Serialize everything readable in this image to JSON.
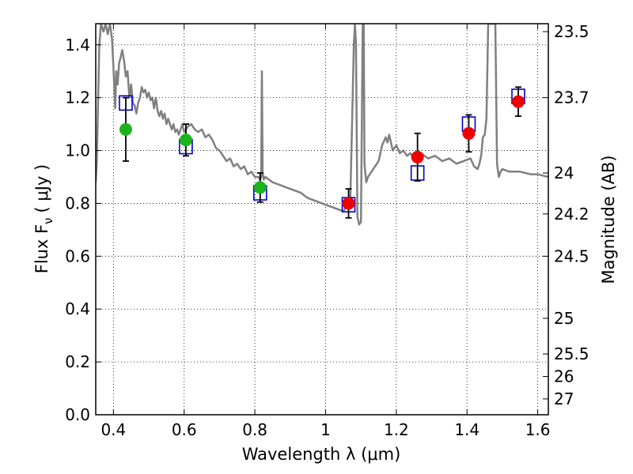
{
  "chart_data": {
    "type": "scatter",
    "xlabel": "Wavelength  λ (μm)",
    "ylabel": "Flux  F",
    "ylabel_sub": "ν",
    "ylabel_unit": "( μJy )",
    "ylabel_right": "Magnitude (AB)",
    "xlim": [
      0.35,
      1.63
    ],
    "ylim": [
      0.0,
      1.48
    ],
    "grid": true,
    "x_ticks": [
      {
        "value": 0.4,
        "label": "0.4"
      },
      {
        "value": 0.6,
        "label": "0.6"
      },
      {
        "value": 0.8,
        "label": "0.8"
      },
      {
        "value": 1.0,
        "label": "1"
      },
      {
        "value": 1.2,
        "label": "1.2"
      },
      {
        "value": 1.4,
        "label": "1.4"
      },
      {
        "value": 1.6,
        "label": "1.6"
      }
    ],
    "y_ticks": [
      {
        "value": 0.0,
        "label": "0.0"
      },
      {
        "value": 0.2,
        "label": "0.2"
      },
      {
        "value": 0.4,
        "label": "0.4"
      },
      {
        "value": 0.6,
        "label": "0.6"
      },
      {
        "value": 0.8,
        "label": "0.8"
      },
      {
        "value": 1.0,
        "label": "1.0"
      },
      {
        "value": 1.2,
        "label": "1.2"
      },
      {
        "value": 1.4,
        "label": "1.4"
      }
    ],
    "y_right_ticks": [
      {
        "flux": 1.45,
        "label": "23.5"
      },
      {
        "flux": 1.2,
        "label": "23.7"
      },
      {
        "flux": 0.915,
        "label": "24"
      },
      {
        "flux": 0.76,
        "label": "24.2"
      },
      {
        "flux": 0.6,
        "label": "24.5"
      },
      {
        "flux": 0.365,
        "label": "25"
      },
      {
        "flux": 0.23,
        "label": "25.5"
      },
      {
        "flux": 0.145,
        "label": "26"
      },
      {
        "flux": 0.06,
        "label": "27"
      }
    ],
    "colors": {
      "green": "#1db31d",
      "red": "#ee0000",
      "model_box": "#0000cc",
      "spectrum": "#808080",
      "error_bar": "#000000"
    },
    "series": [
      {
        "marker": "square",
        "color": "#0000cc",
        "points": [
          {
            "x": 0.435,
            "y": 1.18
          },
          {
            "x": 0.605,
            "y": 1.015
          },
          {
            "x": 0.815,
            "y": 0.84
          },
          {
            "x": 1.065,
            "y": 0.795
          },
          {
            "x": 1.26,
            "y": 0.915
          },
          {
            "x": 1.405,
            "y": 1.1
          },
          {
            "x": 1.545,
            "y": 1.205
          }
        ]
      },
      {
        "marker": "circle",
        "color": "#1db31d",
        "points": [
          {
            "x": 0.435,
            "y": 1.08,
            "err": 0.12
          },
          {
            "x": 0.605,
            "y": 1.04,
            "err": 0.06
          },
          {
            "x": 0.815,
            "y": 0.86,
            "err": 0.055
          }
        ]
      },
      {
        "marker": "circle",
        "color": "#ee0000",
        "points": [
          {
            "x": 1.065,
            "y": 0.8,
            "err": 0.055
          },
          {
            "x": 1.26,
            "y": 0.975,
            "err": 0.09
          },
          {
            "x": 1.405,
            "y": 1.065,
            "err": 0.07
          },
          {
            "x": 1.545,
            "y": 1.185,
            "err": 0.055
          }
        ]
      }
    ],
    "spectrum": [
      [
        0.35,
        0.88
      ],
      [
        0.353,
        0.95
      ],
      [
        0.356,
        1.15
      ],
      [
        0.36,
        1.4
      ],
      [
        0.365,
        1.48
      ],
      [
        0.372,
        1.45
      ],
      [
        0.378,
        1.48
      ],
      [
        0.384,
        1.44
      ],
      [
        0.39,
        1.48
      ],
      [
        0.396,
        1.42
      ],
      [
        0.4,
        1.32
      ],
      [
        0.405,
        1.16
      ],
      [
        0.408,
        1.3
      ],
      [
        0.412,
        1.25
      ],
      [
        0.416,
        1.33
      ],
      [
        0.42,
        1.35
      ],
      [
        0.425,
        1.38
      ],
      [
        0.43,
        1.34
      ],
      [
        0.435,
        1.28
      ],
      [
        0.44,
        1.3
      ],
      [
        0.445,
        1.2
      ],
      [
        0.45,
        1.25
      ],
      [
        0.455,
        1.18
      ],
      [
        0.46,
        1.17
      ],
      [
        0.465,
        1.14
      ],
      [
        0.47,
        1.18
      ],
      [
        0.475,
        1.2
      ],
      [
        0.48,
        1.24
      ],
      [
        0.485,
        1.22
      ],
      [
        0.49,
        1.23
      ],
      [
        0.495,
        1.2
      ],
      [
        0.5,
        1.22
      ],
      [
        0.505,
        1.19
      ],
      [
        0.51,
        1.2
      ],
      [
        0.515,
        1.16
      ],
      [
        0.52,
        1.2
      ],
      [
        0.525,
        1.15
      ],
      [
        0.53,
        1.13
      ],
      [
        0.535,
        1.15
      ],
      [
        0.54,
        1.12
      ],
      [
        0.545,
        1.14
      ],
      [
        0.55,
        1.1
      ],
      [
        0.555,
        1.12
      ],
      [
        0.56,
        1.1
      ],
      [
        0.565,
        1.08
      ],
      [
        0.57,
        1.1
      ],
      [
        0.575,
        1.07
      ],
      [
        0.58,
        1.08
      ],
      [
        0.585,
        1.06
      ],
      [
        0.59,
        1.08
      ],
      [
        0.595,
        1.1
      ],
      [
        0.6,
        1.07
      ],
      [
        0.61,
        1.09
      ],
      [
        0.62,
        1.1
      ],
      [
        0.63,
        1.08
      ],
      [
        0.64,
        1.07
      ],
      [
        0.65,
        1.08
      ],
      [
        0.66,
        1.05
      ],
      [
        0.67,
        1.06
      ],
      [
        0.68,
        1.04
      ],
      [
        0.69,
        1.01
      ],
      [
        0.7,
        1.0
      ],
      [
        0.71,
        0.98
      ],
      [
        0.72,
        0.96
      ],
      [
        0.73,
        0.97
      ],
      [
        0.74,
        0.94
      ],
      [
        0.75,
        0.95
      ],
      [
        0.76,
        0.93
      ],
      [
        0.77,
        0.94
      ],
      [
        0.78,
        0.91
      ],
      [
        0.79,
        0.92
      ],
      [
        0.8,
        0.9
      ],
      [
        0.81,
        0.9
      ],
      [
        0.815,
        0.89
      ],
      [
        0.818,
        0.9
      ],
      [
        0.82,
        1.3
      ],
      [
        0.822,
        0.92
      ],
      [
        0.825,
        0.89
      ],
      [
        0.83,
        0.9
      ],
      [
        0.85,
        0.88
      ],
      [
        0.87,
        0.87
      ],
      [
        0.89,
        0.86
      ],
      [
        0.91,
        0.85
      ],
      [
        0.93,
        0.84
      ],
      [
        0.95,
        0.82
      ],
      [
        0.97,
        0.81
      ],
      [
        0.99,
        0.8
      ],
      [
        1.01,
        0.79
      ],
      [
        1.03,
        0.78
      ],
      [
        1.05,
        0.77
      ],
      [
        1.06,
        0.79
      ],
      [
        1.07,
        0.82
      ],
      [
        1.08,
        1.4
      ],
      [
        1.083,
        1.48
      ],
      [
        1.086,
        1.4
      ],
      [
        1.09,
        0.75
      ],
      [
        1.095,
        0.72
      ],
      [
        1.1,
        0.73
      ],
      [
        1.105,
        1.48
      ],
      [
        1.108,
        1.48
      ],
      [
        1.11,
        0.95
      ],
      [
        1.115,
        0.88
      ],
      [
        1.12,
        0.9
      ],
      [
        1.13,
        0.92
      ],
      [
        1.14,
        0.94
      ],
      [
        1.15,
        0.96
      ],
      [
        1.16,
        1.02
      ],
      [
        1.17,
        1.05
      ],
      [
        1.175,
        1.03
      ],
      [
        1.18,
        1.06
      ],
      [
        1.19,
        1.0
      ],
      [
        1.2,
        1.02
      ],
      [
        1.21,
        0.99
      ],
      [
        1.22,
        1.0
      ],
      [
        1.23,
        0.98
      ],
      [
        1.24,
        0.99
      ],
      [
        1.25,
        0.97
      ],
      [
        1.27,
        0.99
      ],
      [
        1.29,
        0.97
      ],
      [
        1.31,
        0.98
      ],
      [
        1.33,
        0.96
      ],
      [
        1.35,
        0.97
      ],
      [
        1.37,
        0.95
      ],
      [
        1.39,
        0.96
      ],
      [
        1.41,
        0.97
      ],
      [
        1.42,
        0.94
      ],
      [
        1.43,
        0.93
      ],
      [
        1.435,
        0.95
      ],
      [
        1.44,
        0.98
      ],
      [
        1.445,
        1.05
      ],
      [
        1.45,
        1.06
      ],
      [
        1.455,
        1.12
      ],
      [
        1.46,
        1.48
      ],
      [
        1.48,
        1.48
      ],
      [
        1.485,
        0.95
      ],
      [
        1.49,
        0.9
      ],
      [
        1.495,
        0.92
      ],
      [
        1.5,
        0.93
      ],
      [
        1.52,
        0.92
      ],
      [
        1.55,
        0.92
      ],
      [
        1.58,
        0.91
      ],
      [
        1.6,
        0.91
      ],
      [
        1.63,
        0.9
      ]
    ]
  }
}
